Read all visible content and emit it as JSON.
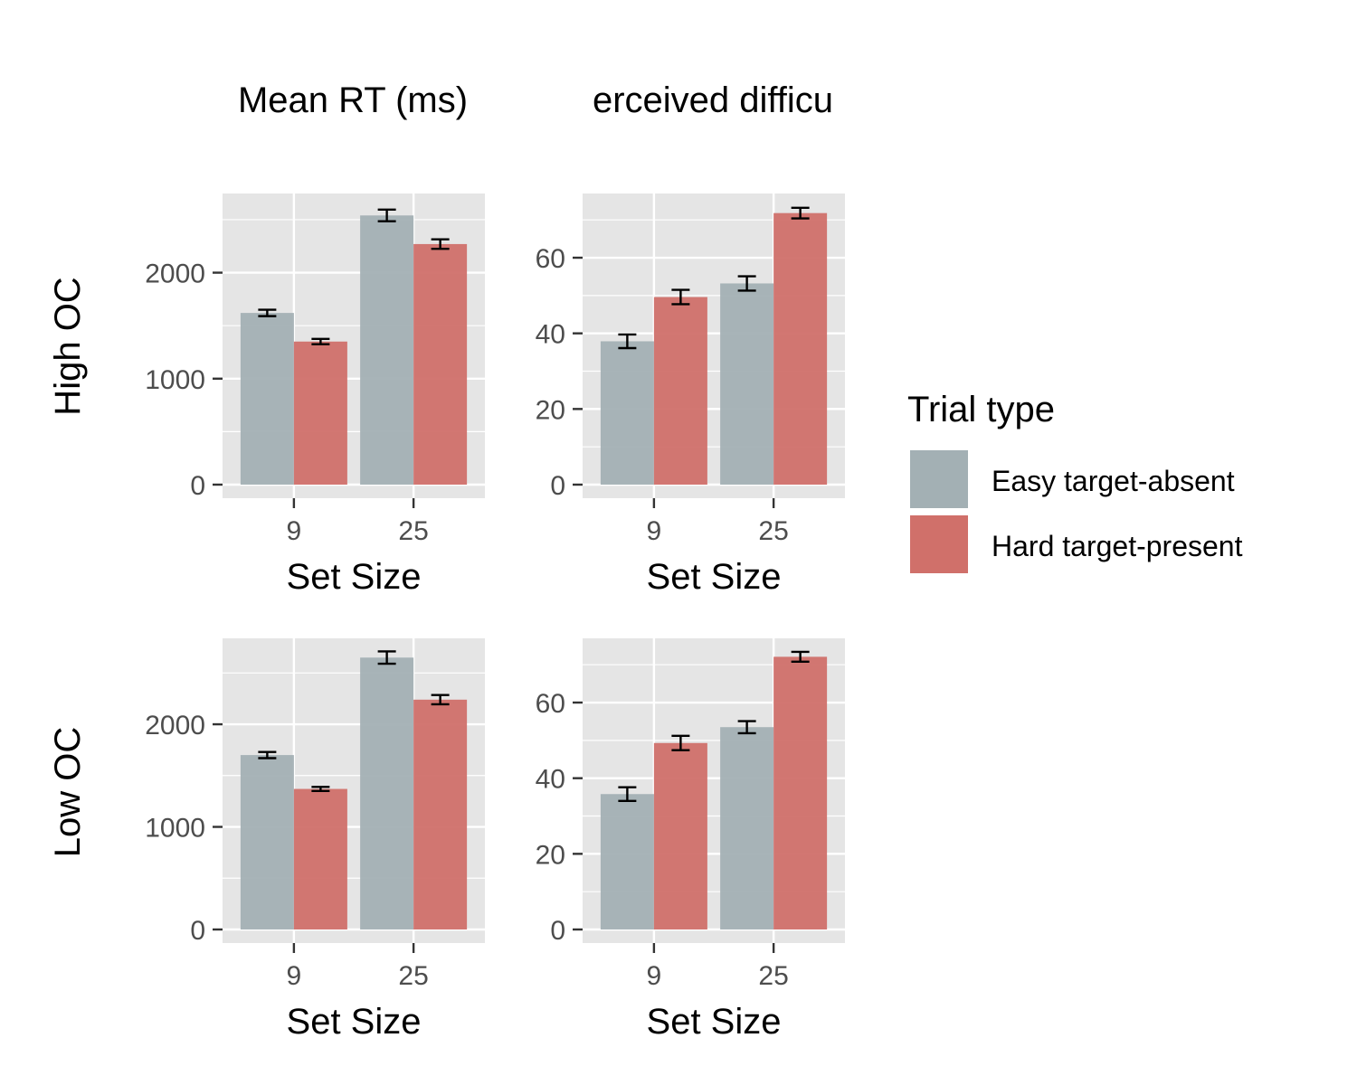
{
  "chart_data": [
    {
      "type": "bar",
      "title": "Mean RT (ms)",
      "row": "High OC",
      "xlabel": "Set Size",
      "categories": [
        "9",
        "25"
      ],
      "ylim": [
        0,
        2730
      ],
      "yticks": [
        0,
        1000,
        2000
      ],
      "series": [
        {
          "name": "Easy target-absent",
          "values": [
            1620,
            2540
          ],
          "errors": [
            30,
            55
          ]
        },
        {
          "name": "Hard target-present",
          "values": [
            1350,
            2270
          ],
          "errors": [
            25,
            45
          ]
        }
      ]
    },
    {
      "type": "bar",
      "title": "Perceived difficulty",
      "row": "High OC",
      "xlabel": "Set Size",
      "categories": [
        "9",
        "25"
      ],
      "ylim": [
        0,
        76.5
      ],
      "yticks": [
        0,
        20,
        40,
        60
      ],
      "series": [
        {
          "name": "Easy target-absent",
          "values": [
            37.9,
            53.2
          ],
          "errors": [
            1.8,
            1.9
          ]
        },
        {
          "name": "Hard target-present",
          "values": [
            49.6,
            71.8
          ],
          "errors": [
            1.9,
            1.4
          ]
        }
      ]
    },
    {
      "type": "bar",
      "title": "Mean RT (ms)",
      "row": "Low OC",
      "xlabel": "Set Size",
      "categories": [
        "9",
        "25"
      ],
      "ylim": [
        0,
        2820
      ],
      "yticks": [
        0,
        1000,
        2000
      ],
      "series": [
        {
          "name": "Easy target-absent",
          "values": [
            1700,
            2650
          ],
          "errors": [
            30,
            60
          ]
        },
        {
          "name": "Hard target-present",
          "values": [
            1370,
            2240
          ],
          "errors": [
            20,
            45
          ]
        }
      ]
    },
    {
      "type": "bar",
      "title": "Perceived difficulty",
      "row": "Low OC",
      "xlabel": "Set Size",
      "categories": [
        "9",
        "25"
      ],
      "ylim": [
        0,
        76.5
      ],
      "yticks": [
        0,
        20,
        40,
        60
      ],
      "series": [
        {
          "name": "Easy target-absent",
          "values": [
            35.8,
            53.5
          ],
          "errors": [
            1.8,
            1.6
          ]
        },
        {
          "name": "Hard target-present",
          "values": [
            49.3,
            72.1
          ],
          "errors": [
            1.9,
            1.3
          ]
        }
      ]
    }
  ],
  "col_titles": [
    "Mean RT (ms)",
    "erceived difficu"
  ],
  "row_labels": [
    "High OC",
    "Low OC"
  ],
  "legend": {
    "title": "Trial type",
    "items": [
      {
        "label": "Easy target-absent",
        "color": "#a3b0b4"
      },
      {
        "label": "Hard target-present",
        "color": "#d0706a"
      }
    ]
  },
  "colors": {
    "panel_bg": "#e5e5e5",
    "grid": "#ffffff",
    "error_bar": "#000000",
    "series": [
      "#a3b0b4",
      "#d0706a"
    ]
  }
}
